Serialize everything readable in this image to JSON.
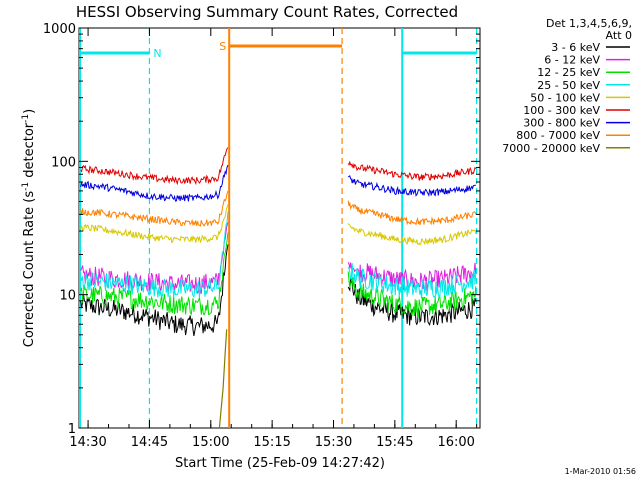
{
  "chart_data": {
    "type": "line",
    "title": "HESSI Observing Summary Count Rates, Corrected",
    "xlabel": "Start Time (25-Feb-09 14:27:42)",
    "ylabel": "Corrected Count Rate (s",
    "ylabel_sup1": "-1",
    "ylabel_mid": " detector",
    "ylabel_sup2": "-1",
    "ylabel_end": ")",
    "y_scale": "log",
    "ylim": [
      1,
      1000
    ],
    "xlim_minutes": [
      14.463,
      16.097
    ],
    "x_ticks": [
      {
        "t": 14.5,
        "label": "14:30"
      },
      {
        "t": 14.75,
        "label": "14:45"
      },
      {
        "t": 15.0,
        "label": "15:00"
      },
      {
        "t": 15.25,
        "label": "15:15"
      },
      {
        "t": 15.5,
        "label": "15:30"
      },
      {
        "t": 15.75,
        "label": "15:45"
      },
      {
        "t": 16.0,
        "label": "16:00"
      }
    ],
    "y_ticks": [
      {
        "v": 1,
        "label": "1"
      },
      {
        "v": 10,
        "label": "10"
      },
      {
        "v": 100,
        "label": "100"
      },
      {
        "v": 1000,
        "label": "1000"
      }
    ],
    "legend": {
      "header1": "Det 1,3,4,5,6,9,",
      "header2": "Att 0",
      "placement": "right"
    },
    "series": [
      {
        "name": "3 - 6 keV",
        "color": "#000000",
        "x": [
          14.47,
          14.55,
          14.65,
          14.75,
          14.85,
          14.95,
          15.03,
          15.07,
          15.56,
          15.6,
          15.68,
          15.75,
          15.85,
          15.95,
          16.08
        ],
        "y": [
          8.5,
          8.0,
          7.5,
          6.8,
          6.0,
          5.8,
          6.0,
          25,
          13,
          9.5,
          8.0,
          7.2,
          6.8,
          7.0,
          8.0
        ]
      },
      {
        "name": "6 - 12 keV",
        "color": "#e020e0",
        "x": [
          14.47,
          14.55,
          14.65,
          14.75,
          14.85,
          14.95,
          15.03,
          15.07,
          15.56,
          15.6,
          15.68,
          15.75,
          15.85,
          15.95,
          16.08
        ],
        "y": [
          14,
          13.5,
          13,
          12.5,
          12.0,
          12.0,
          12.5,
          35,
          17,
          15,
          14,
          13,
          12.5,
          13,
          15
        ]
      },
      {
        "name": "12 - 25 keV",
        "color": "#00e000",
        "x": [
          14.47,
          14.55,
          14.65,
          14.75,
          14.85,
          14.95,
          15.03,
          15.07,
          15.56,
          15.6,
          15.68,
          15.75,
          15.85,
          15.95,
          16.08
        ],
        "y": [
          10,
          9.8,
          9.5,
          9.0,
          8.5,
          8.3,
          8.6,
          30,
          13,
          10.5,
          9.5,
          8.5,
          8.0,
          8.5,
          10
        ]
      },
      {
        "name": "25 - 50 keV",
        "color": "#00e8e8",
        "x": [
          14.47,
          14.55,
          14.65,
          14.75,
          14.85,
          14.95,
          15.03,
          15.07,
          15.56,
          15.6,
          15.68,
          15.75,
          15.85,
          15.95,
          16.08
        ],
        "y": [
          13,
          12.5,
          12,
          11.5,
          11,
          11,
          11.5,
          40,
          15.5,
          13.5,
          12.5,
          11.5,
          11,
          11.5,
          13
        ]
      },
      {
        "name": "50 - 100 keV",
        "color": "#d8c800",
        "x": [
          14.47,
          14.55,
          14.65,
          14.75,
          14.85,
          14.95,
          15.03,
          15.07,
          15.56,
          15.6,
          15.68,
          15.75,
          15.85,
          15.95,
          16.08
        ],
        "y": [
          32,
          31,
          29,
          27,
          26,
          26,
          27,
          45,
          33,
          30,
          28,
          26,
          25,
          26,
          30
        ]
      },
      {
        "name": "100 - 300 keV",
        "color": "#e00000",
        "x": [
          14.47,
          14.55,
          14.65,
          14.75,
          14.85,
          14.95,
          15.03,
          15.07,
          15.56,
          15.6,
          15.68,
          15.75,
          15.85,
          15.95,
          16.08
        ],
        "y": [
          88,
          85,
          80,
          75,
          72,
          72,
          75,
          130,
          100,
          90,
          85,
          80,
          76,
          78,
          86
        ]
      },
      {
        "name": "300 - 800 keV",
        "color": "#0000e0",
        "x": [
          14.47,
          14.55,
          14.65,
          14.75,
          14.85,
          14.95,
          15.03,
          15.07,
          15.56,
          15.6,
          15.68,
          15.75,
          15.85,
          15.95,
          16.08
        ],
        "y": [
          67,
          65,
          60,
          55,
          53,
          53,
          56,
          95,
          75,
          68,
          64,
          60,
          58,
          59,
          64
        ]
      },
      {
        "name": "800 - 7000 keV",
        "color": "#ff8000",
        "x": [
          14.47,
          14.55,
          14.65,
          14.75,
          14.85,
          14.95,
          15.03,
          15.07,
          15.56,
          15.6,
          15.68,
          15.75,
          15.85,
          15.95,
          16.08
        ],
        "y": [
          42,
          41,
          39,
          37,
          35,
          34,
          35,
          60,
          48,
          43,
          40,
          37,
          35,
          36,
          40
        ]
      },
      {
        "name": "7000 - 20000 keV",
        "color": "#808000",
        "x": [
          15.035,
          15.05,
          15.06,
          15.065
        ],
        "y": [
          1.0,
          2.0,
          4.0,
          5.5
        ]
      }
    ],
    "flags": [
      {
        "label": "N",
        "color": "#00e8e8",
        "t_start": 14.467,
        "t_end": 14.75,
        "t_start2": 15.78,
        "t_end2": 16.083
      },
      {
        "label": "S",
        "color": "#ff8000",
        "t_start": 15.075,
        "t_end": 15.535
      }
    ]
  },
  "footer": {
    "timestamp": "1-Mar-2010 01:56"
  }
}
